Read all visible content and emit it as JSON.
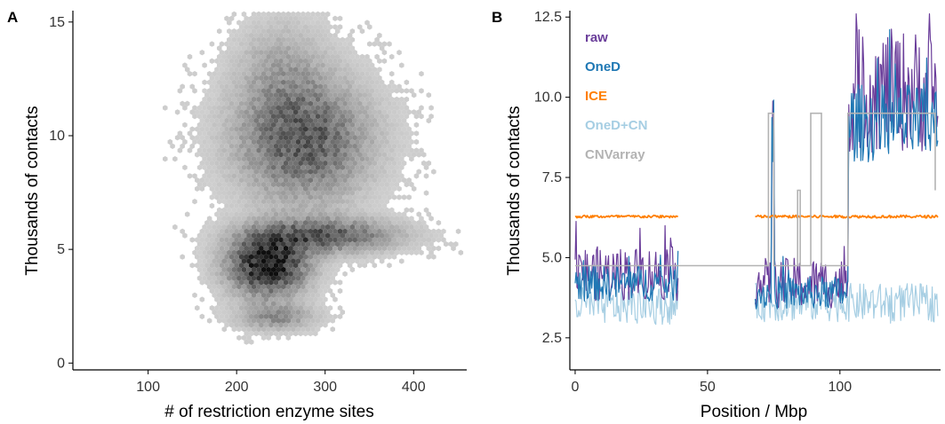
{
  "colors": {
    "raw": "#6a3d9a",
    "OneD": "#1f78b4",
    "ICE": "#ff7f00",
    "OneD+CN": "#a6cee3",
    "CNVarray": "#b3b3b3"
  },
  "chart_data": [
    {
      "panel": "A",
      "type": "hexbin",
      "xlabel": "# of restriction enzyme sites",
      "ylabel": "Thousands of contacts",
      "xlim": [
        15,
        460
      ],
      "ylim": [
        -0.3,
        15.5
      ],
      "xticks": [
        "100",
        "200",
        "300",
        "400"
      ],
      "yticks": [
        "0",
        "5",
        "10",
        "15"
      ],
      "clusters": [
        {
          "cx": 235,
          "cy": 4.3,
          "sx": 30,
          "sy": 0.9,
          "density": 1.0
        },
        {
          "cx": 300,
          "cy": 5.6,
          "sx": 55,
          "sy": 0.5,
          "density": 0.6
        },
        {
          "cx": 275,
          "cy": 9.8,
          "sx": 50,
          "sy": 1.8,
          "density": 0.65
        },
        {
          "cx": 245,
          "cy": 2.0,
          "sx": 30,
          "sy": 0.4,
          "density": 0.35
        },
        {
          "cx": 250,
          "cy": 13.0,
          "sx": 35,
          "sy": 1.5,
          "density": 0.2
        }
      ],
      "grid": false
    },
    {
      "panel": "B",
      "type": "line",
      "xlabel": "Position / Mbp",
      "ylabel": "Thousands of contacts",
      "xlim": [
        -2,
        138
      ],
      "ylim": [
        1.5,
        12.7
      ],
      "xticks": [
        "0",
        "50",
        "100"
      ],
      "yticks": [
        "2.5",
        "5.0",
        "7.5",
        "10.0",
        "12.5"
      ],
      "segments": [
        [
          0,
          39
        ],
        [
          68,
          137
        ]
      ],
      "series": [
        {
          "name": "raw",
          "levels": [
            [
              0,
              39,
              4.5
            ],
            [
              68,
              74,
              4.2
            ],
            [
              74,
              75,
              9.5
            ],
            [
              75,
              103,
              4.2
            ],
            [
              103,
              137,
              10.2
            ]
          ]
        },
        {
          "name": "OneD",
          "levels": [
            [
              0,
              39,
              4.2
            ],
            [
              68,
              74,
              3.9
            ],
            [
              74,
              75,
              9.0
            ],
            [
              75,
              103,
              3.9
            ],
            [
              103,
              137,
              9.2
            ]
          ]
        },
        {
          "name": "ICE",
          "levels": [
            [
              0,
              39,
              6.28
            ],
            [
              68,
              137,
              6.28
            ]
          ]
        },
        {
          "name": "OneD+CN",
          "levels": [
            [
              0,
              39,
              3.5
            ],
            [
              68,
              137,
              3.6
            ]
          ]
        },
        {
          "name": "CNVarray",
          "steps": [
            [
              0,
              4.75
            ],
            [
              73,
              4.75
            ],
            [
              73,
              9.5
            ],
            [
              75,
              9.5
            ],
            [
              75,
              4.75
            ],
            [
              84,
              4.75
            ],
            [
              84,
              7.1
            ],
            [
              85,
              7.1
            ],
            [
              85,
              4.75
            ],
            [
              89,
              4.75
            ],
            [
              89,
              9.5
            ],
            [
              93,
              9.5
            ],
            [
              93,
              4.75
            ],
            [
              103,
              4.75
            ],
            [
              103,
              9.5
            ],
            [
              136,
              9.5
            ],
            [
              136,
              7.1
            ]
          ]
        }
      ],
      "legend": [
        "raw",
        "OneD",
        "ICE",
        "OneD+CN",
        "CNVarray"
      ],
      "legend_placement": "top-left",
      "grid": false
    }
  ]
}
